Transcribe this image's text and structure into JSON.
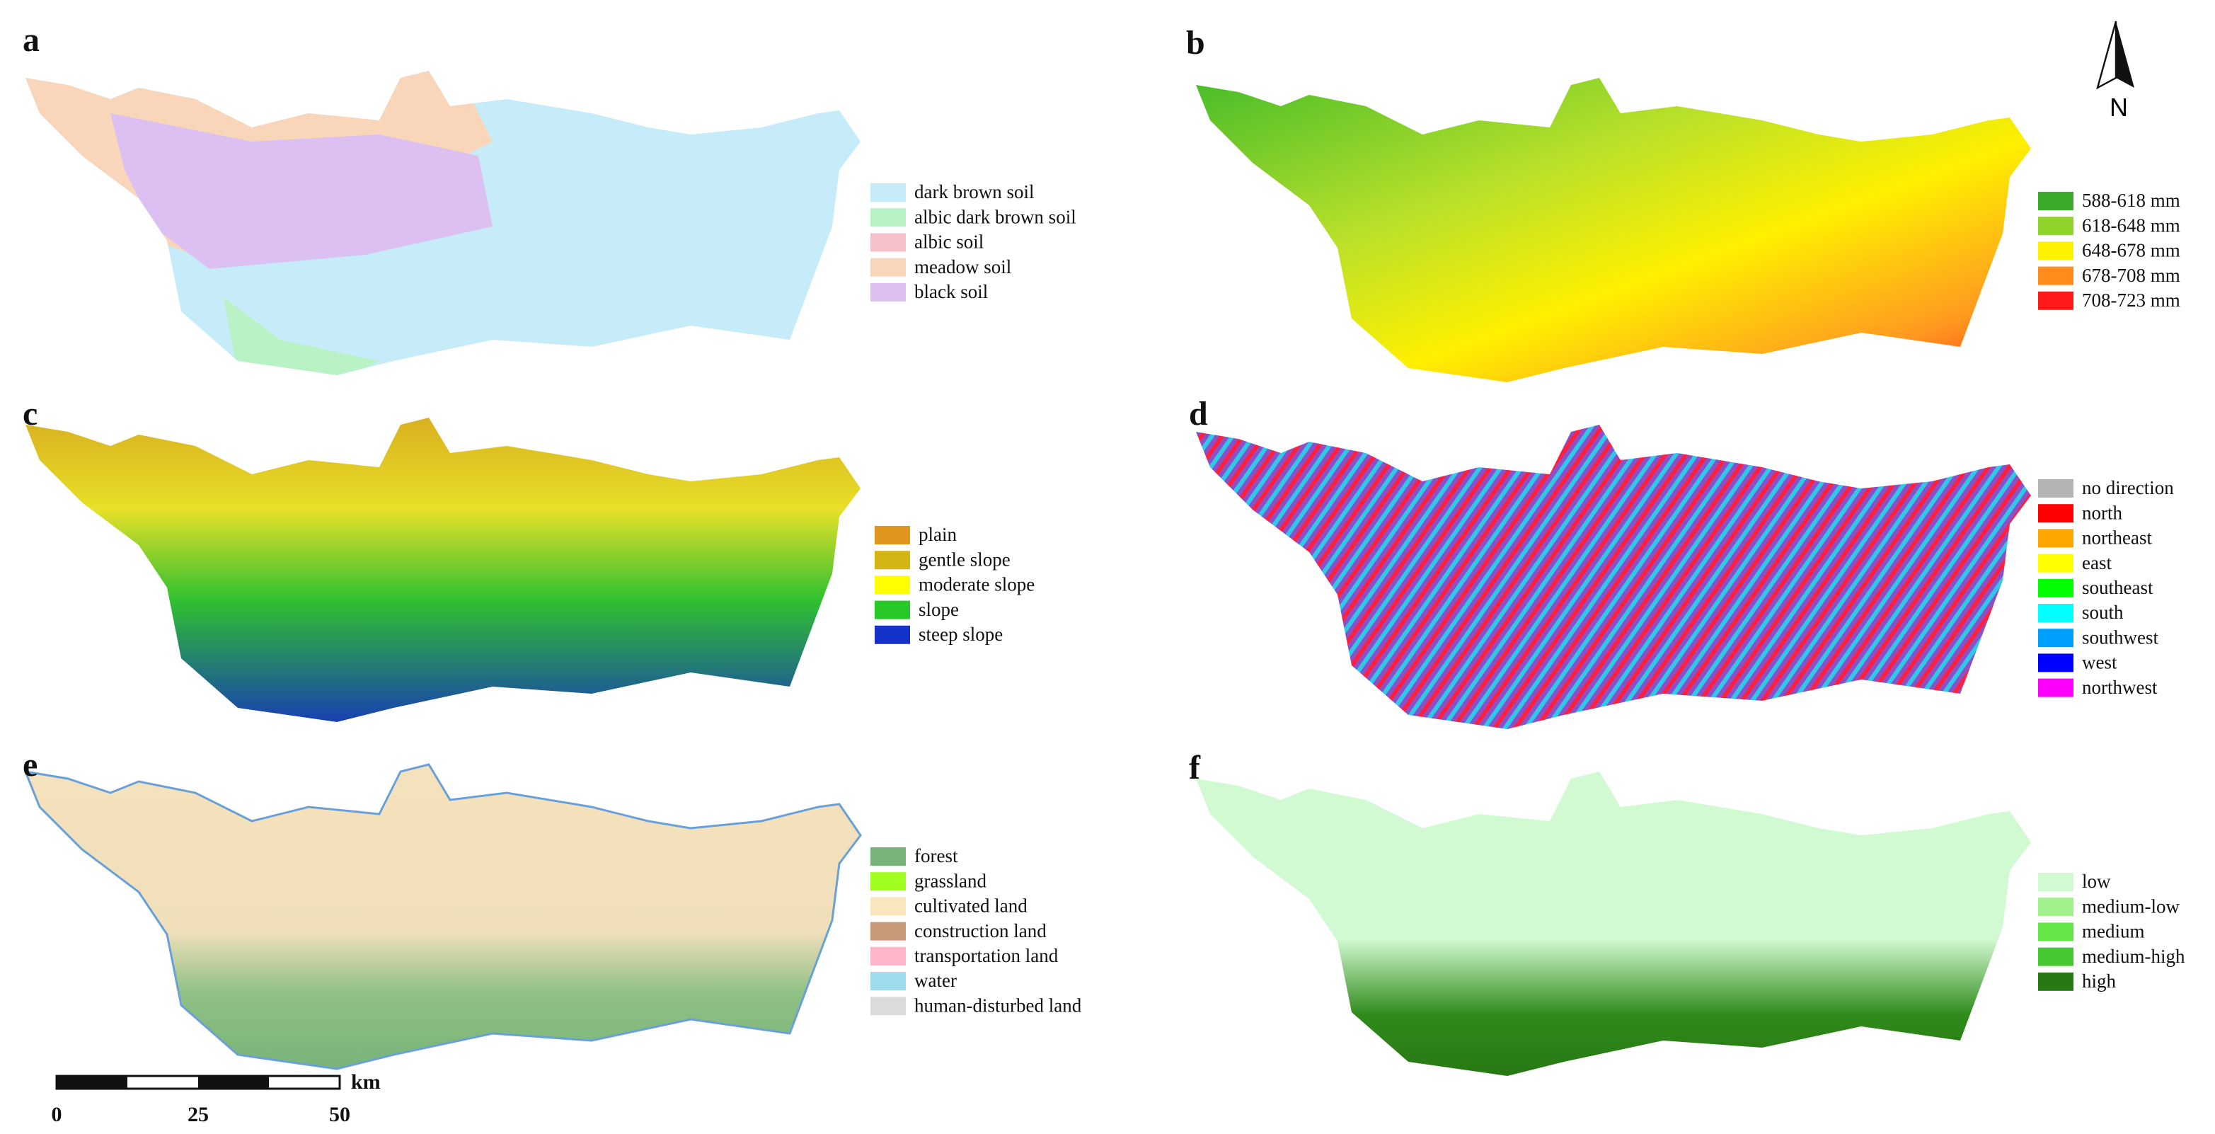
{
  "panels": [
    {
      "label": "a",
      "legend": [
        {
          "label": "dark brown soil",
          "color": "#c6ecf9"
        },
        {
          "label": "albic dark brown soil",
          "color": "#b9f2c4"
        },
        {
          "label": "albic soil",
          "color": "#f6c0cb"
        },
        {
          "label": "meadow soil",
          "color": "#f9d5b9"
        },
        {
          "label": "black soil",
          "color": "#dcc0f2"
        }
      ]
    },
    {
      "label": "b",
      "legend": [
        {
          "label": "588-618 mm",
          "color": "#3caa2a"
        },
        {
          "label": "618-648 mm",
          "color": "#8ed42a"
        },
        {
          "label": "648-678 mm",
          "color": "#fff200"
        },
        {
          "label": "678-708 mm",
          "color": "#ff8c1a"
        },
        {
          "label": "708-723 mm",
          "color": "#ff1a1a"
        }
      ]
    },
    {
      "label": "c",
      "legend": [
        {
          "label": "plain",
          "color": "#e0961e"
        },
        {
          "label": "gentle slope",
          "color": "#d2b414"
        },
        {
          "label": "moderate slope",
          "color": "#ffff00"
        },
        {
          "label": "slope",
          "color": "#28c828"
        },
        {
          "label": "steep slope",
          "color": "#1432c8"
        }
      ]
    },
    {
      "label": "d",
      "legend": [
        {
          "label": "no direction",
          "color": "#b4b4b4"
        },
        {
          "label": "north",
          "color": "#ff0000"
        },
        {
          "label": "northeast",
          "color": "#ffa500"
        },
        {
          "label": "east",
          "color": "#ffff00"
        },
        {
          "label": "southeast",
          "color": "#00ff00"
        },
        {
          "label": "south",
          "color": "#00ffff"
        },
        {
          "label": "southwest",
          "color": "#00a0ff"
        },
        {
          "label": "west",
          "color": "#0000ff"
        },
        {
          "label": "northwest",
          "color": "#ff00ff"
        }
      ]
    },
    {
      "label": "e",
      "legend": [
        {
          "label": "forest",
          "color": "#78b478"
        },
        {
          "label": "grassland",
          "color": "#a0ff1e"
        },
        {
          "label": "cultivated land",
          "color": "#fae6be"
        },
        {
          "label": "construction land",
          "color": "#c89b78"
        },
        {
          "label": "transportation land",
          "color": "#ffb4c8"
        },
        {
          "label": "water",
          "color": "#a0dcf0"
        },
        {
          "label": "human-disturbed land",
          "color": "#dcdcdc"
        }
      ]
    },
    {
      "label": "f",
      "legend": [
        {
          "label": "low",
          "color": "#d2fad2"
        },
        {
          "label": "medium-low",
          "color": "#a0f08c"
        },
        {
          "label": "medium",
          "color": "#64e646"
        },
        {
          "label": "medium-high",
          "color": "#46c832"
        },
        {
          "label": "high",
          "color": "#287814"
        }
      ]
    }
  ],
  "scale_bar": {
    "unit": "km",
    "ticks": [
      "0",
      "25",
      "50"
    ]
  },
  "north_arrow": "N"
}
